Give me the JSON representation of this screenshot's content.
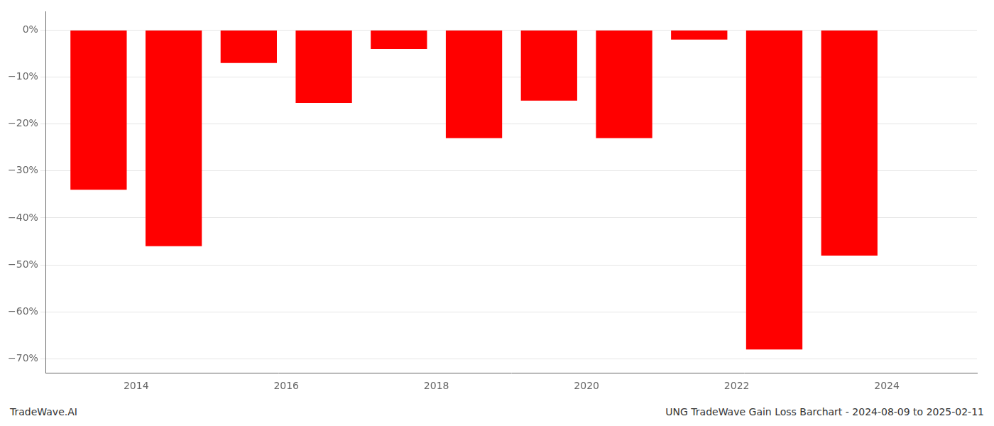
{
  "chart_data": {
    "type": "bar",
    "x": [
      2013.5,
      2014.5,
      2015.5,
      2016.5,
      2017.5,
      2018.5,
      2019.5,
      2020.5,
      2021.5,
      2022.5,
      2023.5
    ],
    "values": [
      -0.34,
      -0.46,
      -0.07,
      -0.155,
      -0.04,
      -0.23,
      -0.15,
      -0.23,
      -0.02,
      -0.68,
      -0.48
    ],
    "color": "#ff0000",
    "xlim": [
      2012.8,
      2025.2
    ],
    "xticks": [
      2014,
      2016,
      2018,
      2020,
      2022,
      2024
    ],
    "ylim": [
      -0.73,
      0.04
    ],
    "yticks": [
      {
        "value": 0.0,
        "label": "0%"
      },
      {
        "value": -0.1,
        "label": "−10%"
      },
      {
        "value": -0.2,
        "label": "−20%"
      },
      {
        "value": -0.3,
        "label": "−30%"
      },
      {
        "value": -0.4,
        "label": "−40%"
      },
      {
        "value": -0.5,
        "label": "−50%"
      },
      {
        "value": -0.6,
        "label": "−60%"
      },
      {
        "value": -0.7,
        "label": "−70%"
      }
    ],
    "grid": true,
    "annotations": [
      "TradeWave.AI",
      "UNG TradeWave Gain Loss Barchart - 2024-08-09 to 2025-02-11"
    ]
  }
}
